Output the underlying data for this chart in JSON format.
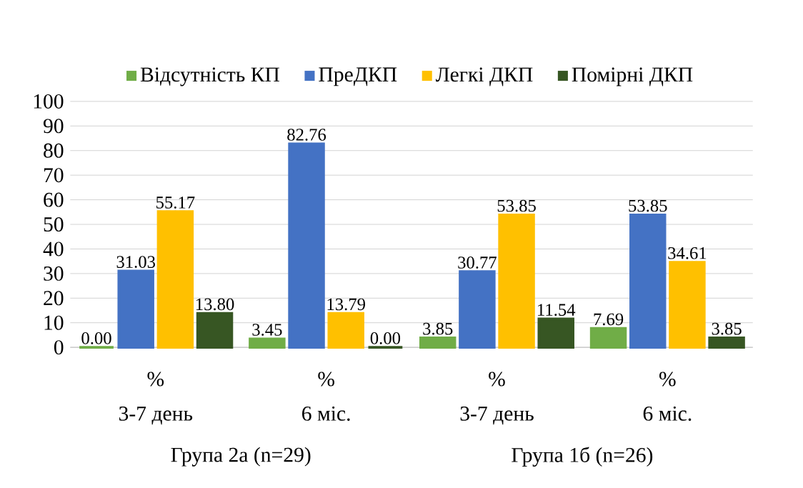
{
  "chart_data": {
    "type": "bar",
    "categories": [
      "3-7 день",
      "6 міс.",
      "3-7 день",
      "6 міс."
    ],
    "series": [
      {
        "name": "Відсутність КП",
        "color": "#70ad47",
        "values": [
          0.0,
          3.45,
          3.85,
          7.69
        ],
        "value_labels": [
          "0.00",
          "3.45",
          "3.85",
          "7.69"
        ]
      },
      {
        "name": "ПреДКП",
        "color": "#4472c4",
        "values": [
          31.03,
          82.76,
          30.77,
          53.85
        ],
        "value_labels": [
          "31.03",
          "82.76",
          "30.77",
          "53.85"
        ]
      },
      {
        "name": "Легкі ДКП",
        "color": "#ffc000",
        "values": [
          55.17,
          13.79,
          53.85,
          34.61
        ],
        "value_labels": [
          "55.17",
          "13.79",
          "53.85",
          "34.61"
        ]
      },
      {
        "name": "Помірні ДКП",
        "color": "#375623",
        "values": [
          13.8,
          0.0,
          11.54,
          3.85
        ],
        "value_labels": [
          "13.80",
          "0.00",
          "11.54",
          "3.85"
        ]
      }
    ],
    "annotations": [
      "%",
      "%",
      "%",
      "%",
      "Група 2а (n=29)",
      "Група 1б (n=26)"
    ],
    "ylim": [
      0,
      100
    ],
    "yticks": [
      0,
      10,
      20,
      30,
      40,
      50,
      60,
      70,
      80,
      90,
      100
    ],
    "grid": "y",
    "legend": "top"
  }
}
